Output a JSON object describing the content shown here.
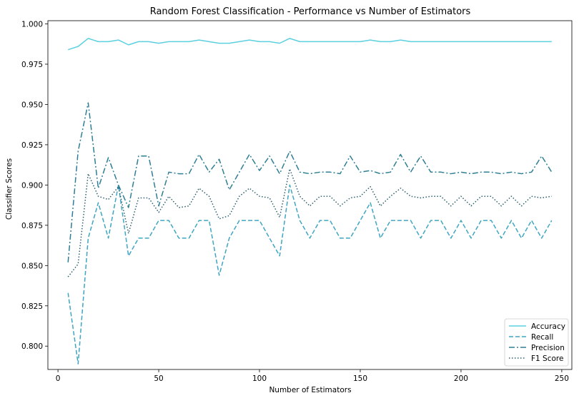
{
  "chart_data": {
    "type": "line",
    "title": "Random Forest Classification - Performance vs Number of Estimators",
    "xlabel": "Number of Estimators",
    "ylabel": "Classifier Scores",
    "xlim": [
      -5,
      255
    ],
    "ylim": [
      0.7855,
      1.002
    ],
    "xticks": [
      0,
      50,
      100,
      150,
      200,
      250
    ],
    "yticks": [
      0.8,
      0.825,
      0.85,
      0.875,
      0.9,
      0.925,
      0.95,
      0.975,
      1.0
    ],
    "ytick_labels": [
      "0.800",
      "0.825",
      "0.850",
      "0.875",
      "0.900",
      "0.925",
      "0.950",
      "0.975",
      "1.000"
    ],
    "grid": false,
    "legend_position": "bottom-right",
    "x": [
      5,
      10,
      15,
      20,
      25,
      30,
      35,
      40,
      45,
      50,
      55,
      60,
      65,
      70,
      75,
      80,
      85,
      90,
      95,
      100,
      105,
      110,
      115,
      120,
      125,
      130,
      135,
      140,
      145,
      150,
      155,
      160,
      165,
      170,
      175,
      180,
      185,
      190,
      195,
      200,
      205,
      210,
      215,
      220,
      225,
      230,
      235,
      240,
      245
    ],
    "series": [
      {
        "name": "Accuracy",
        "color": "#5bd0e0",
        "dash": "solid",
        "values": [
          0.984,
          0.986,
          0.991,
          0.989,
          0.989,
          0.99,
          0.987,
          0.989,
          0.989,
          0.988,
          0.989,
          0.989,
          0.989,
          0.99,
          0.989,
          0.988,
          0.988,
          0.989,
          0.99,
          0.989,
          0.989,
          0.988,
          0.991,
          0.989,
          0.989,
          0.989,
          0.989,
          0.989,
          0.989,
          0.989,
          0.99,
          0.989,
          0.989,
          0.99,
          0.989,
          0.989,
          0.989,
          0.989,
          0.989,
          0.989,
          0.989,
          0.989,
          0.989,
          0.989,
          0.989,
          0.989,
          0.989,
          0.989,
          0.989
        ]
      },
      {
        "name": "Recall",
        "color": "#3ea6c2",
        "dash": "dashed",
        "values": [
          0.833,
          0.789,
          0.867,
          0.889,
          0.867,
          0.9,
          0.856,
          0.867,
          0.867,
          0.878,
          0.878,
          0.867,
          0.867,
          0.878,
          0.878,
          0.844,
          0.867,
          0.878,
          0.878,
          0.878,
          0.867,
          0.856,
          0.9,
          0.878,
          0.867,
          0.878,
          0.878,
          0.867,
          0.867,
          0.878,
          0.889,
          0.867,
          0.878,
          0.878,
          0.878,
          0.867,
          0.878,
          0.878,
          0.867,
          0.878,
          0.867,
          0.878,
          0.878,
          0.867,
          0.878,
          0.867,
          0.878,
          0.867,
          0.878
        ]
      },
      {
        "name": "Precision",
        "color": "#2e7f94",
        "dash": "dashdot",
        "values": [
          0.852,
          0.921,
          0.951,
          0.898,
          0.917,
          0.9,
          0.886,
          0.918,
          0.918,
          0.887,
          0.908,
          0.907,
          0.907,
          0.919,
          0.908,
          0.916,
          0.897,
          0.908,
          0.919,
          0.909,
          0.918,
          0.907,
          0.921,
          0.908,
          0.907,
          0.908,
          0.908,
          0.907,
          0.918,
          0.908,
          0.909,
          0.907,
          0.908,
          0.919,
          0.908,
          0.918,
          0.908,
          0.908,
          0.907,
          0.908,
          0.907,
          0.908,
          0.908,
          0.907,
          0.908,
          0.907,
          0.908,
          0.918,
          0.908
        ]
      },
      {
        "name": "F1 Score",
        "color": "#2a5f6e",
        "dash": "dotted",
        "values": [
          0.843,
          0.851,
          0.907,
          0.893,
          0.891,
          0.899,
          0.87,
          0.892,
          0.892,
          0.883,
          0.893,
          0.886,
          0.887,
          0.898,
          0.893,
          0.879,
          0.881,
          0.893,
          0.898,
          0.893,
          0.892,
          0.88,
          0.91,
          0.893,
          0.887,
          0.893,
          0.893,
          0.887,
          0.892,
          0.893,
          0.899,
          0.887,
          0.893,
          0.898,
          0.893,
          0.892,
          0.893,
          0.893,
          0.887,
          0.893,
          0.887,
          0.893,
          0.893,
          0.887,
          0.893,
          0.887,
          0.893,
          0.892,
          0.893
        ]
      }
    ]
  }
}
